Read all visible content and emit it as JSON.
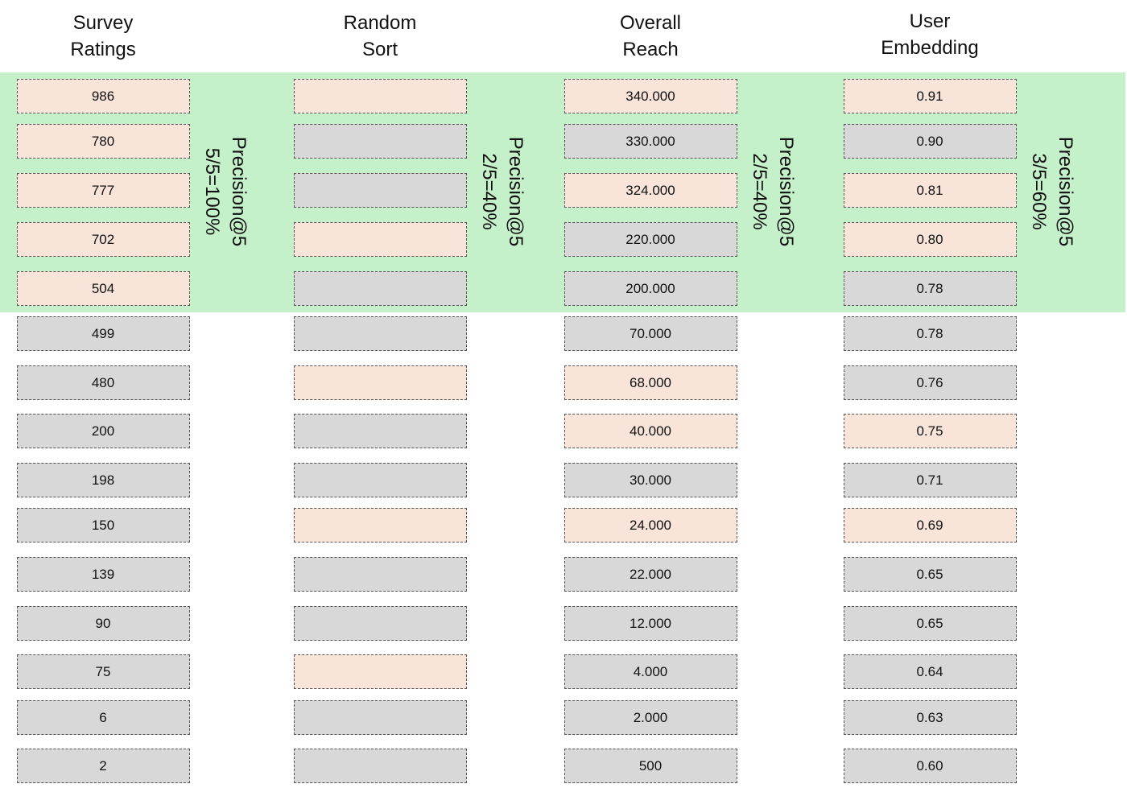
{
  "colors": {
    "band": "#c4f0ca",
    "relevant": "#f8e4d8",
    "other": "#d8d8d8"
  },
  "columns": [
    {
      "title_line1": "Survey",
      "title_line2": "Ratings",
      "precision_label": "Precision@5",
      "precision_value": "5/5=100%",
      "cells": [
        {
          "value": "986",
          "relevant": true
        },
        {
          "value": "780",
          "relevant": true
        },
        {
          "value": "777",
          "relevant": true
        },
        {
          "value": "702",
          "relevant": true
        },
        {
          "value": "504",
          "relevant": true
        },
        {
          "value": "499",
          "relevant": false
        },
        {
          "value": "480",
          "relevant": false
        },
        {
          "value": "200",
          "relevant": false
        },
        {
          "value": "198",
          "relevant": false
        },
        {
          "value": "150",
          "relevant": false
        },
        {
          "value": "139",
          "relevant": false
        },
        {
          "value": "90",
          "relevant": false
        },
        {
          "value": "75",
          "relevant": false
        },
        {
          "value": "6",
          "relevant": false
        },
        {
          "value": "2",
          "relevant": false
        }
      ]
    },
    {
      "title_line1": "Random",
      "title_line2": "Sort",
      "precision_label": "Precision@5",
      "precision_value": "2/5=40%",
      "cells": [
        {
          "value": "",
          "relevant": true
        },
        {
          "value": "",
          "relevant": false
        },
        {
          "value": "",
          "relevant": false
        },
        {
          "value": "",
          "relevant": true
        },
        {
          "value": "",
          "relevant": false
        },
        {
          "value": "",
          "relevant": false
        },
        {
          "value": "",
          "relevant": true
        },
        {
          "value": "",
          "relevant": false
        },
        {
          "value": "",
          "relevant": false
        },
        {
          "value": "",
          "relevant": true
        },
        {
          "value": "",
          "relevant": false
        },
        {
          "value": "",
          "relevant": false
        },
        {
          "value": "",
          "relevant": true
        },
        {
          "value": "",
          "relevant": false
        },
        {
          "value": "",
          "relevant": false
        }
      ]
    },
    {
      "title_line1": "Overall",
      "title_line2": "Reach",
      "precision_label": "Precision@5",
      "precision_value": "2/5=40%",
      "cells": [
        {
          "value": "340.000",
          "relevant": true
        },
        {
          "value": "330.000",
          "relevant": false
        },
        {
          "value": "324.000",
          "relevant": true
        },
        {
          "value": "220.000",
          "relevant": false
        },
        {
          "value": "200.000",
          "relevant": false
        },
        {
          "value": "70.000",
          "relevant": false
        },
        {
          "value": "68.000",
          "relevant": true
        },
        {
          "value": "40.000",
          "relevant": true
        },
        {
          "value": "30.000",
          "relevant": false
        },
        {
          "value": "24.000",
          "relevant": true
        },
        {
          "value": "22.000",
          "relevant": false
        },
        {
          "value": "12.000",
          "relevant": false
        },
        {
          "value": "4.000",
          "relevant": false
        },
        {
          "value": "2.000",
          "relevant": false
        },
        {
          "value": "500",
          "relevant": false
        }
      ]
    },
    {
      "title_line1": "User",
      "title_line2": "Embedding",
      "precision_label": "Precision@5",
      "precision_value": "3/5=60%",
      "cells": [
        {
          "value": "0.91",
          "relevant": true
        },
        {
          "value": "0.90",
          "relevant": false
        },
        {
          "value": "0.81",
          "relevant": true
        },
        {
          "value": "0.80",
          "relevant": true
        },
        {
          "value": "0.78",
          "relevant": false
        },
        {
          "value": "0.78",
          "relevant": false
        },
        {
          "value": "0.76",
          "relevant": false
        },
        {
          "value": "0.75",
          "relevant": true
        },
        {
          "value": "0.71",
          "relevant": false
        },
        {
          "value": "0.69",
          "relevant": true
        },
        {
          "value": "0.65",
          "relevant": false
        },
        {
          "value": "0.65",
          "relevant": false
        },
        {
          "value": "0.64",
          "relevant": false
        },
        {
          "value": "0.63",
          "relevant": false
        },
        {
          "value": "0.60",
          "relevant": false
        }
      ]
    }
  ]
}
